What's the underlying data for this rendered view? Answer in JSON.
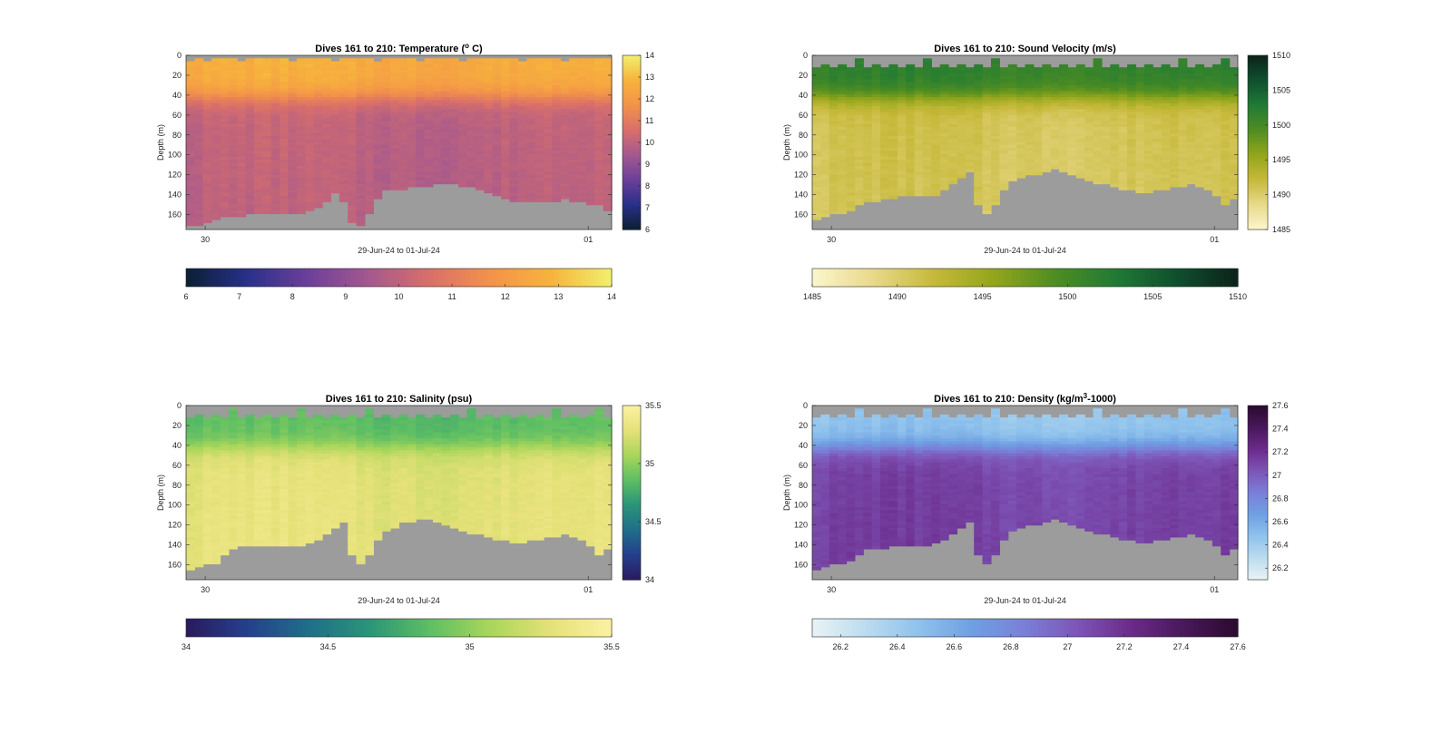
{
  "figure": {
    "xlabel": "29-Jun-24 to 01-Jul-24",
    "ylabel": "Depth (m)"
  },
  "chart_data": [
    {
      "type": "heatmap",
      "variable": "temperature",
      "title": "Dives 161 to 210: Temperature (",
      "title_sup": "o",
      "title_tail": " C)",
      "xlabel": "29-Jun-24 to 01-Jul-24",
      "ylabel": "Depth (m)",
      "x_ticks": [
        "30",
        "01"
      ],
      "y_ticks": [
        0,
        20,
        40,
        60,
        80,
        100,
        120,
        140,
        160
      ],
      "ylim": [
        0,
        175
      ],
      "clim": [
        6,
        14
      ],
      "colorbar_ticks": [
        6,
        7,
        8,
        9,
        10,
        11,
        12,
        13,
        14
      ],
      "colormap": [
        "#0b1f33",
        "#28308a",
        "#6c3f9a",
        "#a4588f",
        "#d96f6a",
        "#f3924a",
        "#f7b33c",
        "#f1f06d"
      ],
      "dives": 50,
      "profile": {
        "surface_value": 12.6,
        "deep_value": 10.0,
        "thermocline_depth_m": 42
      },
      "bottom_depth_m": [
        172,
        170,
        167,
        165,
        162,
        161,
        162,
        160,
        160,
        160,
        158,
        158,
        158,
        158,
        156,
        152,
        148,
        138,
        148,
        168,
        170,
        160,
        145,
        136,
        135,
        135,
        133,
        133,
        132,
        130,
        130,
        130,
        132,
        133,
        135,
        138,
        142,
        145,
        146,
        148,
        148,
        148,
        146,
        146,
        145,
        146,
        148,
        150,
        150,
        155
      ],
      "top_gap_depth_m": [
        5,
        3,
        5,
        2,
        4,
        2,
        5,
        3,
        2,
        4,
        3,
        2,
        5,
        3,
        2,
        4,
        3,
        5,
        2,
        3,
        4,
        2,
        5,
        3,
        4,
        2,
        3,
        5,
        2,
        4,
        3,
        2,
        5,
        3,
        4,
        2,
        3,
        4,
        2,
        5,
        3,
        2,
        4,
        3,
        5,
        2,
        3,
        4,
        2,
        4
      ]
    },
    {
      "type": "heatmap",
      "variable": "sound_velocity",
      "title": "Dives 161 to 210: Sound Velocity (m/s)",
      "xlabel": "29-Jun-24 to 01-Jul-24",
      "ylabel": "Depth (m)",
      "x_ticks": [
        "30",
        "01"
      ],
      "y_ticks": [
        0,
        20,
        40,
        60,
        80,
        100,
        120,
        140,
        160
      ],
      "ylim": [
        0,
        175
      ],
      "clim": [
        1485,
        1510
      ],
      "colorbar_ticks": [
        1485,
        1490,
        1495,
        1500,
        1505,
        1510
      ],
      "colormap": [
        "#fbf6cc",
        "#e8d98a",
        "#c6b93a",
        "#93a51b",
        "#4e8d22",
        "#207a35",
        "#0f4f2e",
        "#0c2219"
      ],
      "dives": 50,
      "profile": {
        "surface_value": 1501.5,
        "deep_value": 1491.0,
        "thermocline_depth_m": 42
      },
      "bottom_depth_m": [
        165,
        162,
        160,
        160,
        155,
        150,
        148,
        148,
        145,
        145,
        140,
        140,
        142,
        140,
        140,
        135,
        130,
        122,
        118,
        150,
        160,
        150,
        135,
        125,
        122,
        120,
        120,
        118,
        115,
        118,
        120,
        122,
        125,
        128,
        130,
        132,
        135,
        135,
        138,
        138,
        136,
        135,
        132,
        132,
        130,
        132,
        135,
        140,
        150,
        145
      ],
      "top_gap_depth_m": [
        12,
        10,
        12,
        10,
        12,
        4,
        12,
        10,
        12,
        10,
        12,
        10,
        12,
        4,
        12,
        10,
        12,
        10,
        12,
        10,
        12,
        4,
        12,
        10,
        12,
        10,
        12,
        10,
        12,
        10,
        12,
        10,
        12,
        4,
        12,
        10,
        12,
        10,
        12,
        10,
        12,
        10,
        12,
        4,
        12,
        10,
        12,
        10,
        4,
        12
      ]
    },
    {
      "type": "heatmap",
      "variable": "salinity",
      "title": "Dives 161 to 210: Salinity (psu)",
      "xlabel": "29-Jun-24 to 01-Jul-24",
      "ylabel": "Depth (m)",
      "x_ticks": [
        "30",
        "01"
      ],
      "y_ticks": [
        0,
        20,
        40,
        60,
        80,
        100,
        120,
        140,
        160
      ],
      "ylim": [
        0,
        175
      ],
      "clim": [
        34,
        35.5
      ],
      "colorbar_ticks": [
        34,
        34.5,
        35,
        35.5
      ],
      "colormap": [
        "#2a1a5e",
        "#253f8c",
        "#1f6e8a",
        "#2a9478",
        "#5dbe64",
        "#a9d65a",
        "#e5e178",
        "#fbf2a2"
      ],
      "dives": 50,
      "profile": {
        "surface_value": 34.85,
        "deep_value": 35.28,
        "thermocline_depth_m": 42
      },
      "bottom_depth_m": [
        165,
        162,
        160,
        160,
        150,
        145,
        140,
        140,
        140,
        140,
        140,
        142,
        140,
        140,
        138,
        135,
        130,
        122,
        118,
        150,
        160,
        150,
        135,
        125,
        122,
        118,
        118,
        115,
        115,
        118,
        120,
        122,
        125,
        128,
        130,
        132,
        135,
        135,
        138,
        138,
        136,
        135,
        132,
        132,
        130,
        132,
        135,
        140,
        150,
        145
      ],
      "top_gap_depth_m": [
        12,
        10,
        12,
        10,
        12,
        4,
        12,
        10,
        12,
        10,
        12,
        10,
        12,
        4,
        12,
        10,
        12,
        10,
        12,
        10,
        12,
        4,
        12,
        10,
        12,
        10,
        12,
        10,
        12,
        10,
        12,
        10,
        12,
        4,
        12,
        10,
        12,
        10,
        12,
        10,
        12,
        10,
        12,
        4,
        12,
        10,
        12,
        10,
        4,
        12
      ]
    },
    {
      "type": "heatmap",
      "variable": "density",
      "title": "Dives 161 to 210: Density (kg/m",
      "title_sup": "3",
      "title_tail": "-1000)",
      "xlabel": "29-Jun-24 to 01-Jul-24",
      "ylabel": "Depth (m)",
      "x_ticks": [
        "30",
        "01"
      ],
      "y_ticks": [
        0,
        20,
        40,
        60,
        80,
        100,
        120,
        140,
        160
      ],
      "ylim": [
        0,
        175
      ],
      "clim": [
        26.1,
        27.6
      ],
      "colorbar_ticks": [
        26.2,
        26.4,
        26.6,
        26.8,
        27,
        27.2,
        27.4,
        27.6
      ],
      "colormap": [
        "#e8f3f5",
        "#bcdcef",
        "#8fc2ec",
        "#6fa0e3",
        "#7a7fd7",
        "#7d54b6",
        "#6b2a8a",
        "#48185a",
        "#2a0a2e"
      ],
      "dives": 50,
      "profile": {
        "surface_value": 26.45,
        "deep_value": 27.1,
        "thermocline_depth_m": 42
      },
      "bottom_depth_m": [
        165,
        162,
        160,
        160,
        155,
        150,
        145,
        145,
        145,
        140,
        140,
        142,
        140,
        140,
        138,
        135,
        130,
        122,
        118,
        150,
        160,
        150,
        135,
        125,
        122,
        120,
        120,
        118,
        115,
        118,
        120,
        122,
        125,
        128,
        130,
        132,
        135,
        135,
        138,
        138,
        136,
        135,
        132,
        132,
        130,
        132,
        135,
        140,
        150,
        145
      ],
      "top_gap_depth_m": [
        12,
        10,
        12,
        10,
        12,
        4,
        12,
        10,
        12,
        10,
        12,
        10,
        12,
        4,
        12,
        10,
        12,
        10,
        12,
        10,
        12,
        4,
        12,
        10,
        12,
        10,
        12,
        10,
        12,
        10,
        12,
        10,
        12,
        4,
        12,
        10,
        12,
        10,
        12,
        10,
        12,
        10,
        12,
        4,
        12,
        10,
        12,
        10,
        4,
        12
      ]
    }
  ]
}
